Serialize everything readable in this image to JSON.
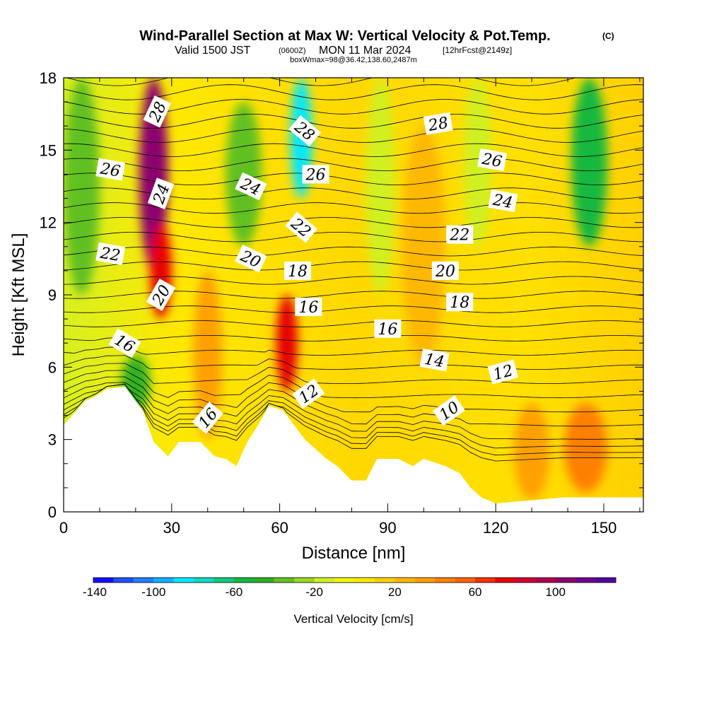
{
  "chart_data": {
    "type": "heatmap",
    "title": "Wind-Parallel Section at Max W: Vertical Velocity & Pot.Temp.",
    "title_suffix": "(C)",
    "subtitle": {
      "valid": "Valid 1500 JST",
      "zulu": "(0600Z)",
      "date": "MON 11 Mar 2024",
      "fcst": "[12hrFcst@2149z]"
    },
    "info_line": "boxWmax=98@36.42,138.60,2487m",
    "xlabel": "Distance [nm]",
    "ylabel": "Height [Kft MSL]",
    "xlim": [
      0,
      161
    ],
    "ylim": [
      0,
      18
    ],
    "x_ticks": [
      0,
      30,
      60,
      90,
      120,
      150
    ],
    "y_ticks": [
      0,
      3,
      6,
      9,
      12,
      15,
      18
    ],
    "x_tick_labels": [
      "0",
      "30",
      "60",
      "90",
      "120",
      "150"
    ],
    "y_tick_labels": [
      "0",
      "3",
      "6",
      "9",
      "12",
      "15",
      "18"
    ],
    "terrain": [
      [
        0,
        3.6
      ],
      [
        3,
        4.1
      ],
      [
        6,
        4.6
      ],
      [
        9,
        4.8
      ],
      [
        12,
        5.1
      ],
      [
        17,
        5.2
      ],
      [
        22,
        4.2
      ],
      [
        25,
        2.9
      ],
      [
        29,
        2.3
      ],
      [
        32,
        2.9
      ],
      [
        38,
        2.9
      ],
      [
        42,
        2.3
      ],
      [
        45,
        2.2
      ],
      [
        48,
        1.9
      ],
      [
        51,
        2.9
      ],
      [
        54,
        3.6
      ],
      [
        57,
        4.4
      ],
      [
        61,
        4.2
      ],
      [
        64,
        3.6
      ],
      [
        67,
        3.0
      ],
      [
        70,
        2.6
      ],
      [
        73,
        2.2
      ],
      [
        76,
        1.9
      ],
      [
        80,
        1.3
      ],
      [
        84,
        1.3
      ],
      [
        87,
        2.2
      ],
      [
        93,
        2.2
      ],
      [
        97,
        1.9
      ],
      [
        100,
        2.2
      ],
      [
        106,
        1.9
      ],
      [
        110,
        1.6
      ],
      [
        113,
        1.0
      ],
      [
        116,
        0.6
      ],
      [
        120,
        0.35
      ],
      [
        139,
        0.6
      ],
      [
        161,
        0.6
      ]
    ],
    "vertical_velocity_cells": [
      {
        "x": 25,
        "ytop": 18,
        "ybot": 10,
        "w": 8,
        "value": 100
      },
      {
        "x": 27,
        "ytop": 12,
        "ybot": 8,
        "w": 6,
        "value": 70
      },
      {
        "x": 20,
        "ytop": 6.5,
        "ybot": 4.2,
        "w": 8,
        "value": -50
      },
      {
        "x": 66,
        "ytop": 18,
        "ybot": 13,
        "w": 6,
        "value": -90
      },
      {
        "x": 62,
        "ytop": 9,
        "ybot": 5,
        "w": 6,
        "value": 70
      },
      {
        "x": 146,
        "ytop": 18,
        "ybot": 11,
        "w": 10,
        "value": -55
      },
      {
        "x": 5,
        "ytop": 18,
        "ybot": 9,
        "w": 10,
        "value": -35
      },
      {
        "x": 50,
        "ytop": 17,
        "ybot": 11,
        "w": 10,
        "value": -35
      },
      {
        "x": 88,
        "ytop": 18,
        "ybot": 9,
        "w": 8,
        "value": -20
      },
      {
        "x": 115,
        "ytop": 18,
        "ybot": 11,
        "w": 8,
        "value": -20
      },
      {
        "x": 130,
        "ytop": 4.5,
        "ybot": 0.5,
        "w": 10,
        "value": 30
      },
      {
        "x": 145,
        "ytop": 4.5,
        "ybot": 0.8,
        "w": 12,
        "value": 40
      },
      {
        "x": 40,
        "ytop": 10,
        "ybot": 3,
        "w": 8,
        "value": 30
      },
      {
        "x": 100,
        "ytop": 16,
        "ybot": 6,
        "w": 12,
        "value": 25
      }
    ],
    "contour_labels": [
      {
        "text": "28",
        "x": 26,
        "y": 16.6,
        "angle": -65
      },
      {
        "text": "24",
        "x": 27,
        "y": 13.2,
        "angle": -70
      },
      {
        "text": "20",
        "x": 27,
        "y": 9.0,
        "angle": -60
      },
      {
        "text": "16",
        "x": 17,
        "y": 7.0,
        "angle": 30
      },
      {
        "text": "26",
        "x": 13,
        "y": 14.2,
        "angle": 10
      },
      {
        "text": "22",
        "x": 13,
        "y": 10.7,
        "angle": 10
      },
      {
        "text": "16",
        "x": 40,
        "y": 3.9,
        "angle": -50
      },
      {
        "text": "24",
        "x": 52,
        "y": 13.5,
        "angle": 25
      },
      {
        "text": "20",
        "x": 52,
        "y": 10.5,
        "angle": 25
      },
      {
        "text": "28",
        "x": 67,
        "y": 15.8,
        "angle": 40
      },
      {
        "text": "26",
        "x": 70,
        "y": 14.0,
        "angle": 0
      },
      {
        "text": "22",
        "x": 66,
        "y": 11.8,
        "angle": 40
      },
      {
        "text": "18",
        "x": 65,
        "y": 10.0,
        "angle": 0
      },
      {
        "text": "16",
        "x": 68,
        "y": 8.5,
        "angle": 0
      },
      {
        "text": "12",
        "x": 68,
        "y": 4.9,
        "angle": -35
      },
      {
        "text": "28",
        "x": 104,
        "y": 16.1,
        "angle": -10
      },
      {
        "text": "26",
        "x": 119,
        "y": 14.6,
        "angle": 10
      },
      {
        "text": "24",
        "x": 122,
        "y": 12.9,
        "angle": 10
      },
      {
        "text": "22",
        "x": 110,
        "y": 11.5,
        "angle": 0
      },
      {
        "text": "20",
        "x": 106,
        "y": 10.0,
        "angle": 0
      },
      {
        "text": "18",
        "x": 110,
        "y": 8.7,
        "angle": 0
      },
      {
        "text": "16",
        "x": 90,
        "y": 7.6,
        "angle": 0
      },
      {
        "text": "14",
        "x": 103,
        "y": 6.3,
        "angle": 10
      },
      {
        "text": "12",
        "x": 122,
        "y": 5.8,
        "angle": -15
      },
      {
        "text": "10",
        "x": 107,
        "y": 4.2,
        "angle": -35
      }
    ],
    "colorbar": {
      "label": "Vertical Velocity [cm/s]",
      "min": -130,
      "max": 130,
      "step": 10,
      "tick_values": [
        -140,
        -100,
        -60,
        -20,
        20,
        60,
        100
      ],
      "tick_labels": [
        "-140",
        "-100",
        "-60",
        "-20",
        "20",
        "60",
        "100"
      ],
      "colors": [
        "#1010ff",
        "#2050ff",
        "#2080ff",
        "#10b0ff",
        "#00e8ff",
        "#10d8c0",
        "#10c880",
        "#18b840",
        "#30b020",
        "#60c020",
        "#98d820",
        "#d0f020",
        "#f4f400",
        "#ffe800",
        "#ffd000",
        "#ffb800",
        "#ffa000",
        "#ff8000",
        "#ff6000",
        "#f83000",
        "#e80000",
        "#d00030",
        "#b00050",
        "#8c0070",
        "#700090",
        "#5000a0"
      ]
    }
  }
}
